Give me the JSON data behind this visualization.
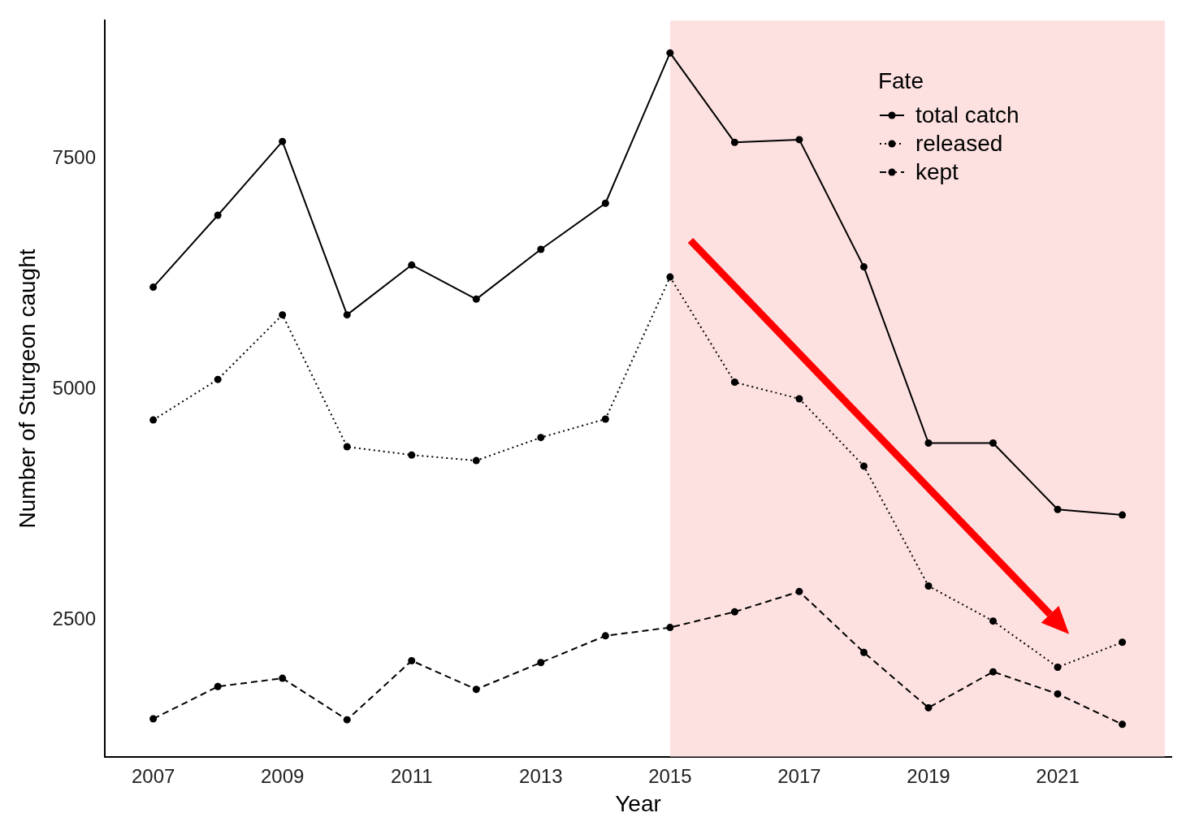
{
  "chart_data": {
    "type": "line",
    "xlabel": "Year",
    "ylabel": "Number of Sturgeon caught",
    "legend_title": "Fate",
    "x": [
      2007,
      2008,
      2009,
      2010,
      2011,
      2012,
      2013,
      2014,
      2015,
      2016,
      2017,
      2018,
      2019,
      2020,
      2021,
      2022
    ],
    "series": [
      {
        "name": "total catch",
        "color": "#000000",
        "line_style": "solid",
        "values": [
          6110,
          6890,
          7690,
          5810,
          6350,
          5980,
          6520,
          7020,
          8650,
          7680,
          7710,
          6330,
          4420,
          4420,
          3700,
          3640
        ]
      },
      {
        "name": "released",
        "color": "#000000",
        "line_style": "dotted",
        "values": [
          4670,
          5110,
          5810,
          4380,
          4290,
          4230,
          4480,
          4680,
          6220,
          5080,
          4900,
          4170,
          2870,
          2490,
          1990,
          2260
        ]
      },
      {
        "name": "kept",
        "color": "#000000",
        "line_style": "dashed",
        "values": [
          1430,
          1780,
          1870,
          1420,
          2060,
          1750,
          2040,
          2330,
          2420,
          2590,
          2810,
          2150,
          1550,
          1940,
          1700,
          1370
        ]
      }
    ],
    "marker": "circle",
    "legend": "top right",
    "grid": false,
    "xlim": [
      2006.25,
      2022.76
    ],
    "xticks": [
      2007,
      2009,
      2011,
      2013,
      2015,
      2017,
      2019,
      2021
    ],
    "ylim": [
      1020,
      9000
    ],
    "yticks": [
      2500,
      5000,
      7500
    ],
    "bands": [
      {
        "axis": "x",
        "from": 2015,
        "to": 2022.66,
        "color": "#fde0e0"
      }
    ]
  }
}
